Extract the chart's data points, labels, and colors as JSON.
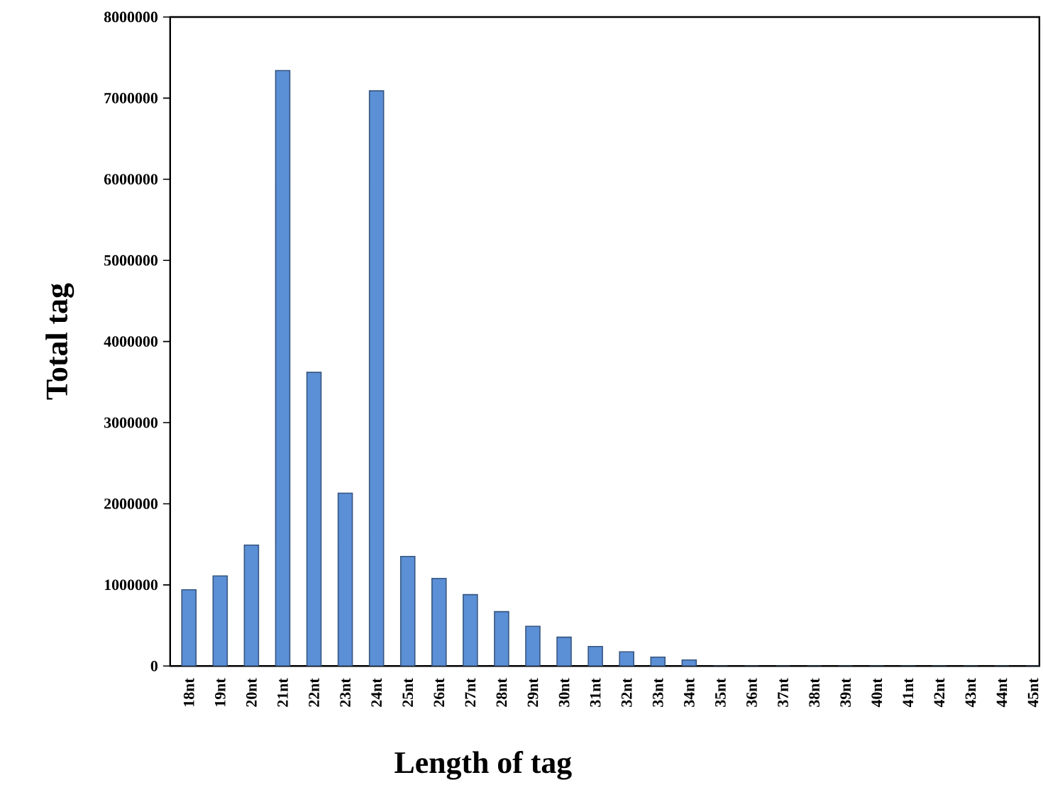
{
  "chart_data": {
    "type": "bar",
    "xlabel": "Length of tag",
    "ylabel": "Total tag",
    "categories": [
      "18nt",
      "19nt",
      "20nt",
      "21nt",
      "22nt",
      "23nt",
      "24nt",
      "25nt",
      "26nt",
      "27nt",
      "28nt",
      "29nt",
      "30nt",
      "31nt",
      "32nt",
      "33nt",
      "34nt",
      "35nt",
      "36nt",
      "37nt",
      "38nt",
      "39nt",
      "40nt",
      "41nt",
      "42nt",
      "43nt",
      "44nt",
      "45nt"
    ],
    "values": [
      940000,
      1110000,
      1490000,
      7340000,
      3620000,
      2130000,
      7090000,
      1350000,
      1080000,
      880000,
      670000,
      490000,
      355000,
      240000,
      175000,
      110000,
      75000,
      0,
      0,
      0,
      0,
      0,
      0,
      0,
      0,
      0,
      0,
      0
    ],
    "color": "#5b8fd6",
    "ylim": [
      0,
      8000000
    ],
    "yticks": [
      0,
      1000000,
      2000000,
      3000000,
      4000000,
      5000000,
      6000000,
      7000000,
      8000000
    ]
  }
}
